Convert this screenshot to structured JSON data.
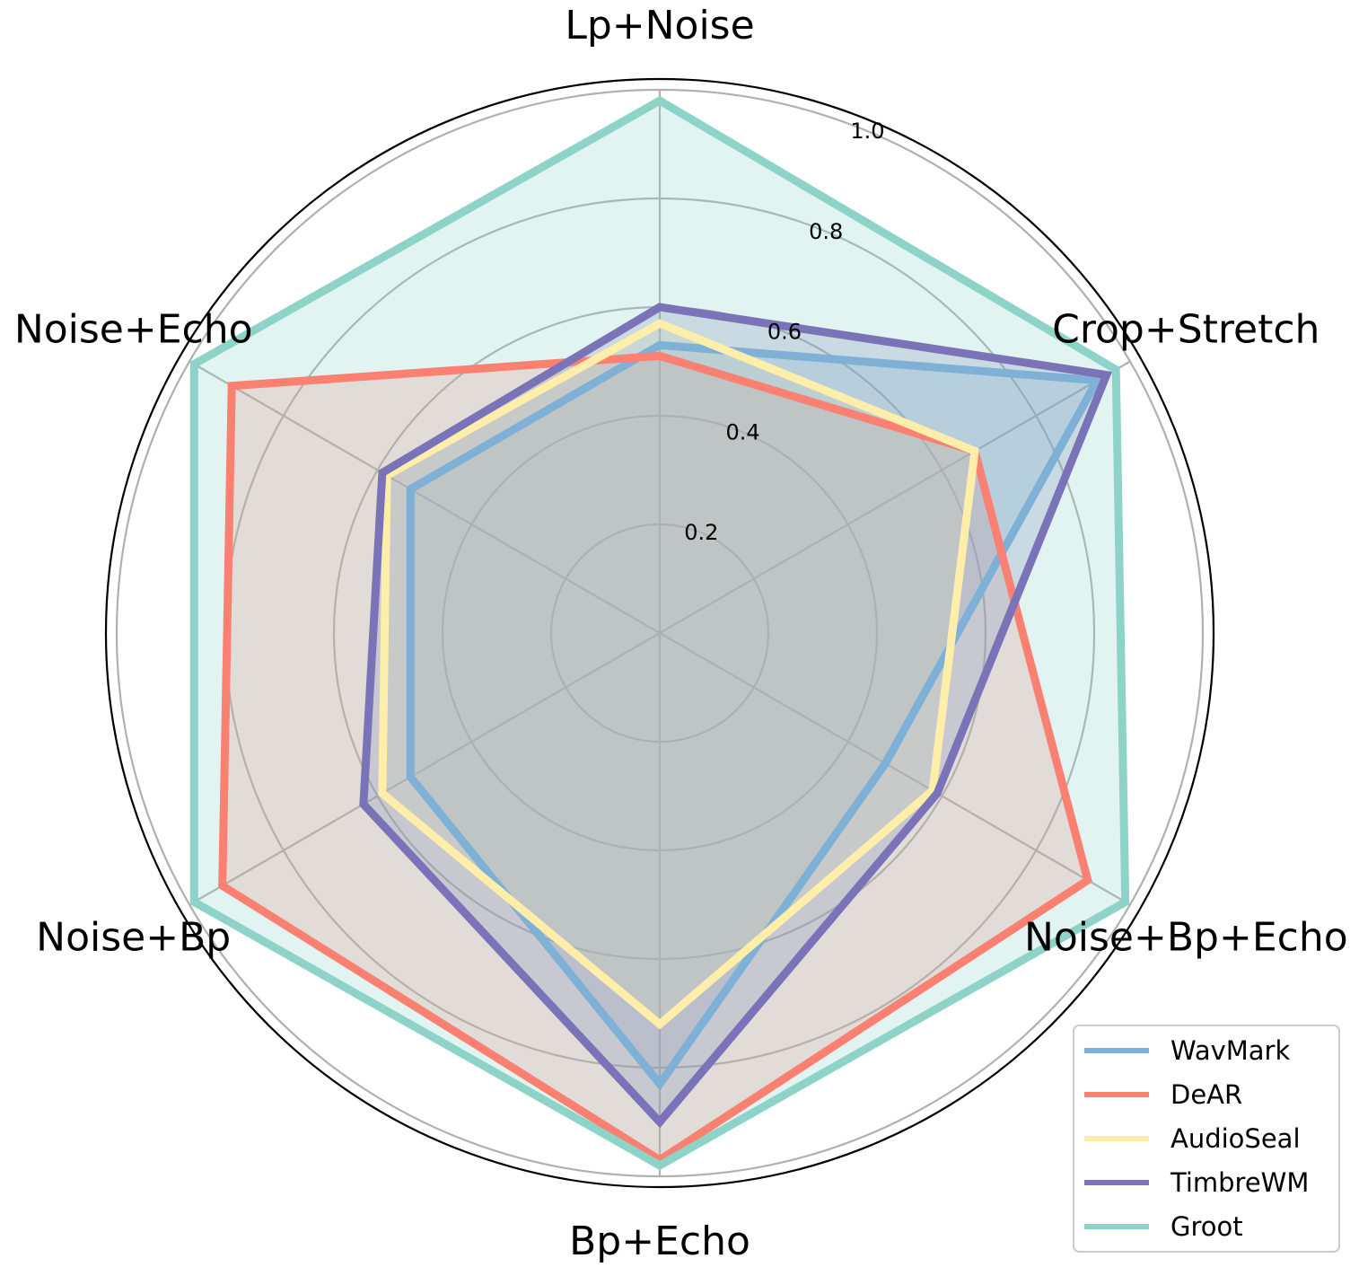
{
  "chart_data": {
    "type": "radar",
    "title": "",
    "categories": [
      "Lp+Noise",
      "Crop+Stretch",
      "Noise+Bp+Echo",
      "Bp+Echo",
      "Noise+Bp",
      "Noise+Echo"
    ],
    "rlim": [
      0,
      1.0
    ],
    "r_ticks": [
      0.2,
      0.4,
      0.6,
      0.8,
      1.0
    ],
    "r_tick_labels": [
      "0.2",
      "0.4",
      "0.6",
      "0.8",
      "1.0"
    ],
    "grid": true,
    "legend_position": "bottom-right",
    "series": [
      {
        "name": "WavMark",
        "color": "#7fb0d6",
        "values": [
          0.53,
          0.93,
          0.48,
          0.83,
          0.53,
          0.53
        ]
      },
      {
        "name": "DeAR",
        "color": "#fa8072",
        "values": [
          0.51,
          0.67,
          0.91,
          0.97,
          0.93,
          0.91
        ]
      },
      {
        "name": "AudioSeal",
        "color": "#ffeeaa",
        "values": [
          0.57,
          0.67,
          0.58,
          0.72,
          0.59,
          0.58
        ]
      },
      {
        "name": "TimbreWM",
        "color": "#7b73b8",
        "values": [
          0.6,
          0.95,
          0.59,
          0.9,
          0.63,
          0.59
        ]
      },
      {
        "name": "Groot",
        "color": "#8dd3c7",
        "values": [
          0.98,
          0.97,
          0.99,
          0.98,
          0.99,
          0.99
        ]
      }
    ]
  }
}
